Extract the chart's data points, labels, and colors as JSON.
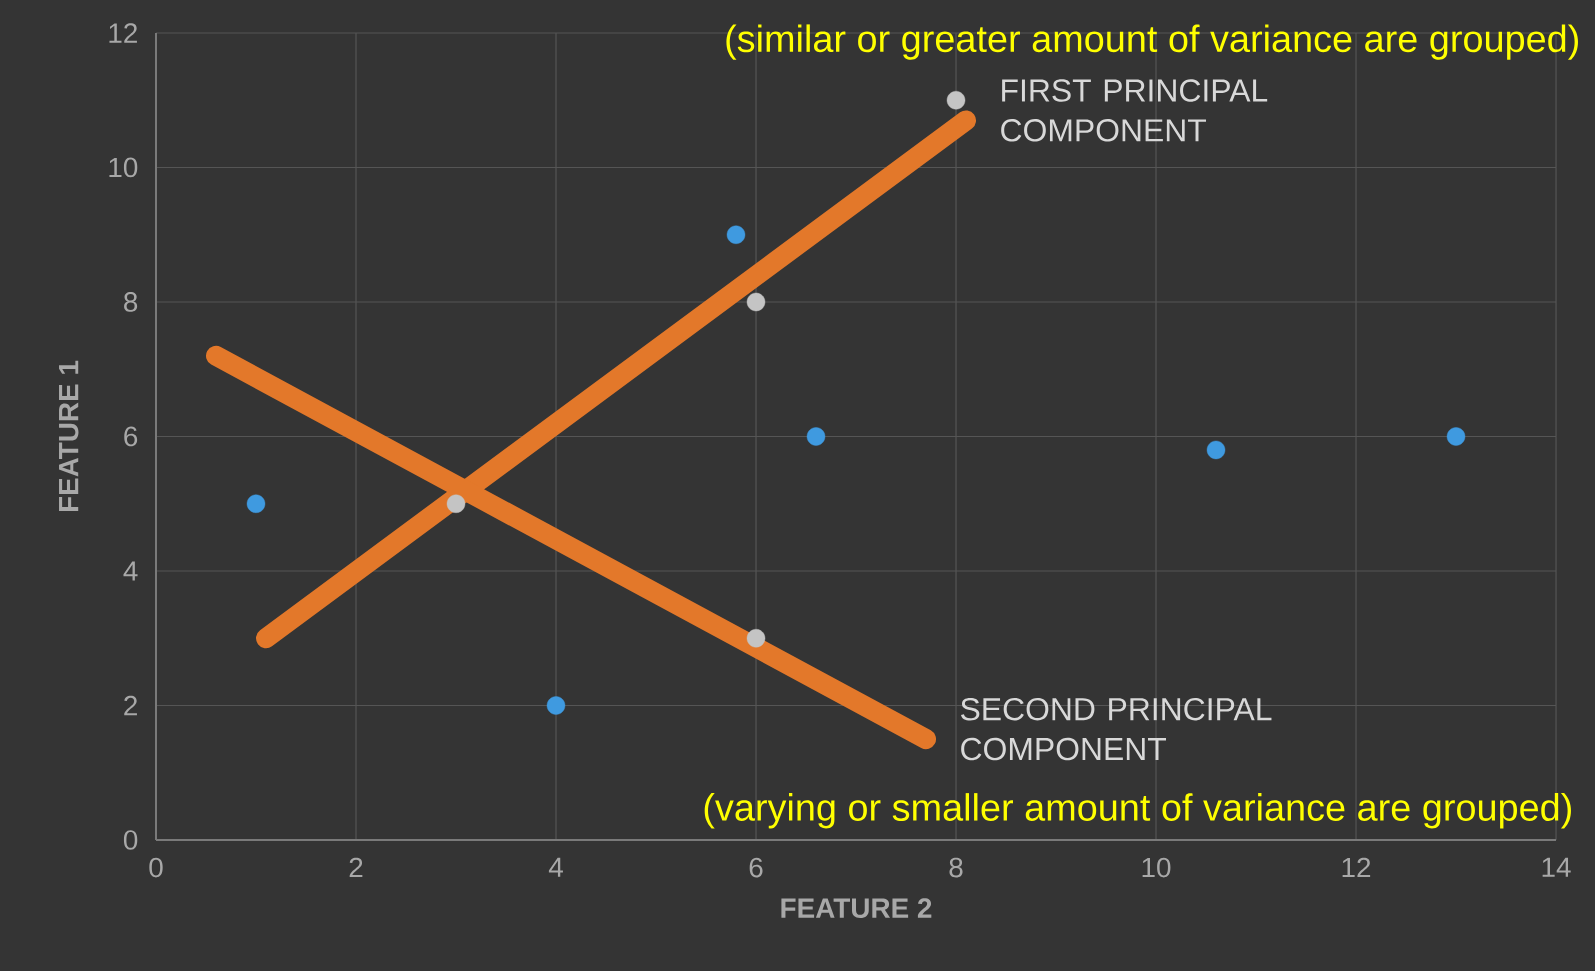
{
  "chart_data": {
    "type": "scatter",
    "xlabel": "FEATURE 2",
    "ylabel": "FEATURE 1",
    "xlim": [
      0,
      14
    ],
    "xticks": [
      0,
      2,
      4,
      6,
      8,
      10,
      12,
      14
    ],
    "ylim": [
      0,
      12
    ],
    "yticks": [
      0,
      2,
      4,
      6,
      8,
      10,
      12
    ],
    "grid": true,
    "marker": "circle",
    "series": [
      {
        "type": "line",
        "name": "FIRST PRINCIPAL COMPONENT",
        "color": "#e3782a",
        "x": [
          1.1,
          8.1
        ],
        "values": [
          3,
          10.7
        ],
        "marker": "none",
        "line_style": "solid"
      },
      {
        "type": "line",
        "name": "SECOND PRINCIPAL COMPONENT",
        "color": "#e3782a",
        "x": [
          0.6,
          7.7
        ],
        "values": [
          7.2,
          1.5
        ],
        "marker": "none",
        "line_style": "solid"
      },
      {
        "color": "#3f9ae0",
        "x": [
          1,
          4,
          5.8,
          6.6,
          10.6,
          13
        ],
        "values": [
          5,
          2,
          9,
          6,
          5.8,
          6
        ]
      },
      {
        "color": "#c4c4c4",
        "x": [
          3,
          6,
          8,
          6
        ],
        "values": [
          5,
          8,
          11,
          3
        ]
      }
    ],
    "annotations": [
      "(similar or greater amount of variance are grouped)",
      "(varying or smaller amount of variance are grouped)"
    ]
  }
}
